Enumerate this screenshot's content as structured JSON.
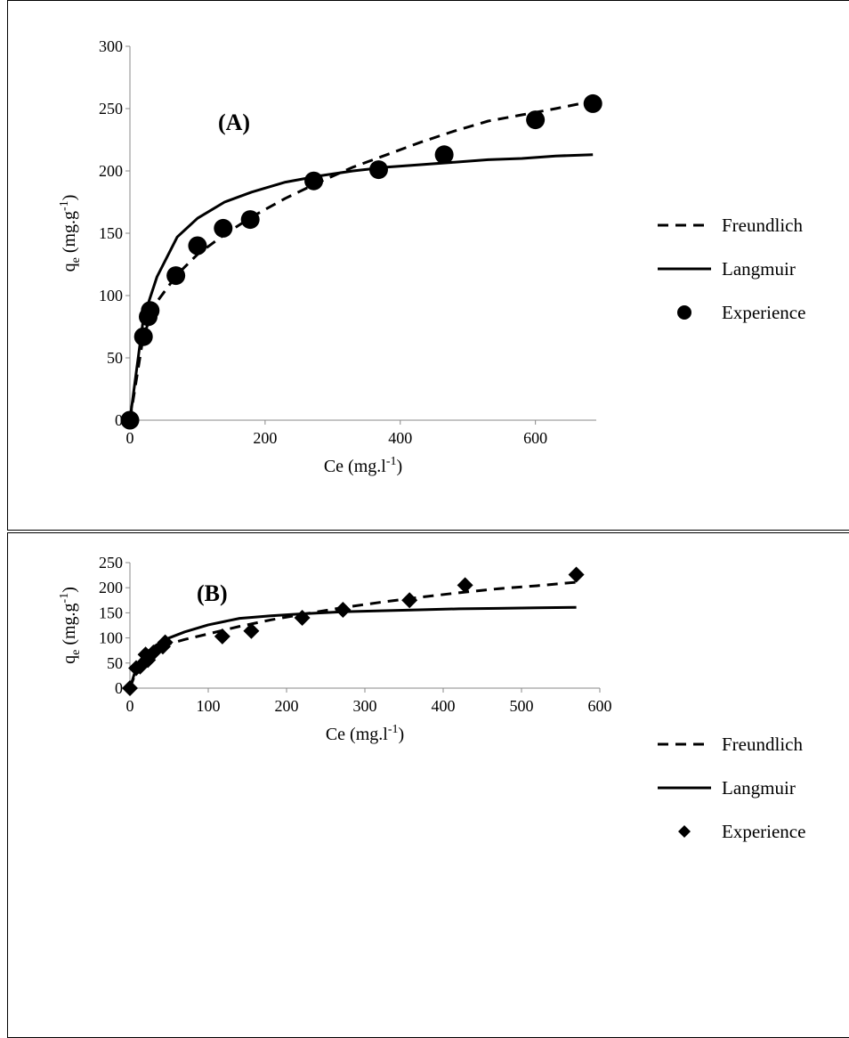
{
  "chart_data": [
    {
      "type": "scatter",
      "panel_label": "(A)",
      "xlabel": "Ce (mg.l-1)",
      "ylabel": "qe (mg.g-1)",
      "xlim": [
        0,
        690
      ],
      "ylim": [
        0,
        300
      ],
      "xticks": [
        0,
        200,
        400,
        600
      ],
      "yticks": [
        0,
        50,
        100,
        150,
        200,
        250,
        300
      ],
      "grid": false,
      "legend_position": "right",
      "marker": "circle",
      "series": [
        {
          "name": "Freundlich",
          "style": "dashed",
          "x": [
            0,
            20,
            40,
            70,
            100,
            140,
            180,
            230,
            280,
            330,
            380,
            430,
            480,
            530,
            580,
            630,
            685
          ],
          "y": [
            0,
            68,
            95,
            117,
            133,
            149,
            163,
            178,
            191,
            203,
            213,
            223,
            232,
            240,
            245,
            250,
            256
          ]
        },
        {
          "name": "Langmuir",
          "style": "solid",
          "x": [
            0,
            20,
            40,
            70,
            100,
            140,
            180,
            230,
            280,
            330,
            380,
            430,
            480,
            530,
            580,
            630,
            685
          ],
          "y": [
            0,
            82,
            115,
            147,
            162,
            175,
            183,
            191,
            196,
            200,
            203,
            205,
            207,
            209,
            210,
            212,
            213
          ]
        },
        {
          "name": "Experience",
          "style": "markers",
          "x": [
            0,
            20,
            27,
            30,
            68,
            100,
            138,
            178,
            272,
            368,
            465,
            600,
            685
          ],
          "y": [
            0,
            67,
            83,
            88,
            116,
            140,
            154,
            161,
            192,
            201,
            213,
            241,
            254
          ]
        }
      ]
    },
    {
      "type": "scatter",
      "panel_label": "(B)",
      "xlabel": "Ce (mg.l-1)",
      "ylabel": "qe (mg.g-1)",
      "xlim": [
        0,
        600
      ],
      "ylim": [
        0,
        250
      ],
      "xticks": [
        0,
        100,
        200,
        300,
        400,
        500,
        600
      ],
      "yticks": [
        0,
        50,
        100,
        150,
        200,
        250
      ],
      "grid": false,
      "legend_position": "right",
      "marker": "diamond",
      "series": [
        {
          "name": "Freundlich",
          "style": "dashed",
          "x": [
            0,
            10,
            30,
            50,
            70,
            100,
            140,
            180,
            220,
            270,
            320,
            370,
            420,
            470,
            520,
            570
          ],
          "y": [
            0,
            42,
            72,
            88,
            97,
            108,
            123,
            136,
            147,
            160,
            171,
            181,
            190,
            198,
            204,
            211
          ]
        },
        {
          "name": "Langmuir",
          "style": "solid",
          "x": [
            0,
            10,
            20,
            30,
            45,
            70,
            100,
            140,
            180,
            220,
            270,
            320,
            370,
            420,
            470,
            520,
            570
          ],
          "y": [
            0,
            50,
            68,
            82,
            97,
            112,
            126,
            139,
            144,
            148,
            152,
            154,
            156,
            158,
            159,
            160,
            161
          ]
        },
        {
          "name": "Experience",
          "style": "markers",
          "x": [
            0,
            8,
            13,
            20,
            23,
            30,
            42,
            45,
            118,
            155,
            220,
            272,
            357,
            428,
            570
          ],
          "y": [
            0,
            40,
            43,
            67,
            56,
            71,
            83,
            91,
            103,
            114,
            140,
            156,
            175,
            205,
            226
          ]
        }
      ]
    }
  ]
}
